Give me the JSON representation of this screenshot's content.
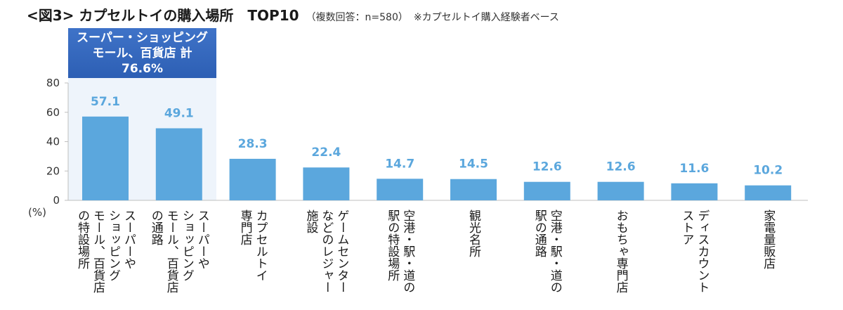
{
  "title": {
    "main": "<図3> カプセルトイの購入場所　TOP10",
    "sub": "（複数回答：n=580）",
    "note": "※カプセルトイ購入経験者ベース"
  },
  "callout": {
    "line1": "スーパー・ショッピング",
    "line2": "モール、百貨店 計",
    "line3": "76.6%"
  },
  "colors": {
    "bar": "#5ba7dd",
    "label": "#5ba7dd",
    "highlight_bg": "#eef4fb",
    "callout": "#3568bd"
  },
  "chart_data": {
    "type": "bar",
    "title": "<図3> カプセルトイの購入場所　TOP10",
    "ylabel": "(%)",
    "ylim": [
      0,
      80
    ],
    "yticks": [
      0,
      20,
      40,
      60,
      80
    ],
    "categories": [
      "スーパーや\nショッピング\nモール、百貨店\nの特設場所",
      "スーパーや\nショッピング\nモール、百貨店\nの通路",
      "カプセルトイ\n専門店",
      "ゲームセンター\nなどのレジャー\n施設",
      "空港・駅・道の\n駅の特設場所",
      "観光名所",
      "空港・駅・道の\n駅の通路",
      "おもちゃ専門店",
      "ディスカウント\nストア",
      "家電量販店"
    ],
    "values": [
      57.1,
      49.1,
      28.3,
      22.4,
      14.7,
      14.5,
      12.6,
      12.6,
      11.6,
      10.2
    ],
    "value_labels": [
      "57.1",
      "49.1",
      "28.3",
      "22.4",
      "14.7",
      "14.5",
      "12.6",
      "12.6",
      "11.6",
      "10.2"
    ],
    "grid": false,
    "legend": "none"
  }
}
